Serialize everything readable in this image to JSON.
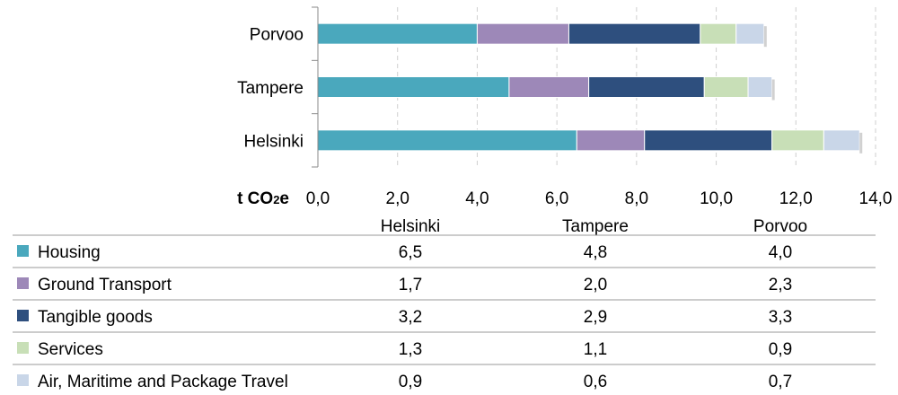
{
  "chart_data": {
    "type": "bar",
    "orientation": "horizontal",
    "stacked": true,
    "categories": [
      "Porvoo",
      "Tampere",
      "Helsinki"
    ],
    "xunit": {
      "prefix": "t CO",
      "sub": "2",
      "suffix": "e"
    },
    "xlim": [
      0,
      14
    ],
    "xticks": [
      "0,0",
      "2,0",
      "4,0",
      "6,0",
      "8,0",
      "10,0",
      "12,0",
      "14,0"
    ],
    "series": [
      {
        "name": "Housing",
        "color": "#4aa8bd",
        "values": [
          4.0,
          4.8,
          6.5
        ],
        "labels": [
          "4,0",
          "4,8",
          "6,5"
        ]
      },
      {
        "name": "Ground Transport",
        "color": "#9d88b8",
        "values": [
          2.3,
          2.0,
          1.7
        ],
        "labels": [
          "2,3",
          "2,0",
          "1,7"
        ]
      },
      {
        "name": "Tangible goods",
        "color": "#2e4f7e",
        "values": [
          3.3,
          2.9,
          3.2
        ],
        "labels": [
          "3,3",
          "2,9",
          "3,2"
        ]
      },
      {
        "name": "Services",
        "color": "#c8dfb7",
        "values": [
          0.9,
          1.1,
          1.3
        ],
        "labels": [
          "0,9",
          "1,1",
          "1,3"
        ]
      },
      {
        "name": "Air, Maritime and Package Travel",
        "color": "#c9d6e8",
        "values": [
          0.7,
          0.6,
          0.9
        ],
        "labels": [
          "0,7",
          "0,6",
          "0,9"
        ]
      }
    ],
    "table_columns": [
      "Helsinki",
      "Tampere",
      "Porvoo"
    ]
  }
}
